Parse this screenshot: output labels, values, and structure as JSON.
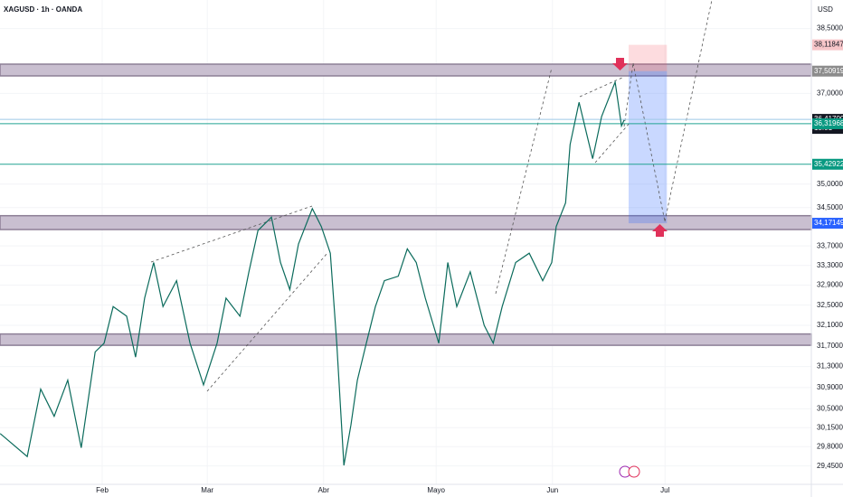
{
  "chart_data": {
    "type": "line",
    "title": "XAGUSD · 1h · OANDA",
    "currency": "USD",
    "log": true,
    "color": "#0b6b5c",
    "x": [
      3.8,
      11,
      14.6,
      18.2,
      21.8,
      25.4,
      29.1,
      31.5,
      33.9,
      37.5,
      39.9,
      42.3,
      44.7,
      47.2,
      50.8,
      54.4,
      58,
      61.6,
      64,
      67.7,
      70.1,
      72.5,
      76.1,
      78.5,
      81,
      83.3,
      87,
      89.4,
      91.8,
      93.5,
      95.4,
      97.3,
      99,
      101.4,
      103.8,
      106.2,
      109.9,
      112.3,
      114.7,
      117.1,
      120.7,
      123.1,
      125.5,
      129.1,
      132.8,
      135.2,
      137.6,
      141.2,
      144.8,
      148.4,
      150.8,
      152,
      154.5,
      155.7,
      158.1,
      161.7,
      164.1,
      167.7,
      169.4,
      170.1
    ],
    "values": [
      30.04,
      29.62,
      30.87,
      30.36,
      31.04,
      29.78,
      31.58,
      31.75,
      32.47,
      32.28,
      31.48,
      32.64,
      33.36,
      32.47,
      32.99,
      31.75,
      30.95,
      31.75,
      32.64,
      32.28,
      33.17,
      34.02,
      34.3,
      33.36,
      32.81,
      33.74,
      34.48,
      34.1,
      33.55,
      31.75,
      29.46,
      30.2,
      31.04,
      31.75,
      32.47,
      32.99,
      33.08,
      33.64,
      33.36,
      32.64,
      31.75,
      33.36,
      32.47,
      33.17,
      32.1,
      31.75,
      32.47,
      33.36,
      33.55,
      32.99,
      33.36,
      34.1,
      34.6,
      35.86,
      36.8,
      35.55,
      36.48,
      37.26,
      36.27,
      36.4
    ],
    "xlim": [
      3.75,
      220
    ],
    "xticks": [
      {
        "value": 31,
        "label": "Feb"
      },
      {
        "value": 59,
        "label": "Mar"
      },
      {
        "value": 90,
        "label": "Abr"
      },
      {
        "value": 120,
        "label": "Mayo"
      },
      {
        "value": 151,
        "label": "Jun"
      },
      {
        "value": 181,
        "label": "Jul"
      }
    ],
    "ylim": [
      29.12,
      39.18
    ],
    "yticks": [
      {
        "value": 38.5,
        "label": "38,50000"
      },
      {
        "value": 37,
        "label": "37,00000"
      },
      {
        "value": 35,
        "label": "35,00000"
      },
      {
        "value": 34.5,
        "label": "34,50000"
      },
      {
        "value": 33.7,
        "label": "33,70000"
      },
      {
        "value": 33.3,
        "label": "33,30000"
      },
      {
        "value": 32.9,
        "label": "32,90000"
      },
      {
        "value": 32.5,
        "label": "32,50000"
      },
      {
        "value": 32.1,
        "label": "32,10000"
      },
      {
        "value": 31.7,
        "label": "31,70000"
      },
      {
        "value": 31.3,
        "label": "31,30000"
      },
      {
        "value": 30.9,
        "label": "30,90000"
      },
      {
        "value": 30.5,
        "label": "30,50000"
      },
      {
        "value": 30.15,
        "label": "30,15000"
      },
      {
        "value": 29.8,
        "label": "29,80000"
      },
      {
        "value": 29.45,
        "label": "29,45000"
      }
    ],
    "zones": [
      {
        "from": 37.4,
        "to": 37.67
      },
      {
        "from": 34.04,
        "to": 34.33
      },
      {
        "from": 31.71,
        "to": 31.93
      }
    ],
    "position": {
      "from_x": 171.3,
      "to_x": 181.5,
      "stop": 38.11847,
      "entry": 37.50919,
      "target": 34.17149
    },
    "price_labels": [
      {
        "value": 38.11847,
        "label": "38,11847",
        "color": "#f7c6c9",
        "text_color": "#131722"
      },
      {
        "value": 37.50919,
        "label": "37,50919",
        "color": "#8c8c8c",
        "text_color": "#ffffff"
      },
      {
        "value": 36.417,
        "label": "36,41700",
        "time": "15:01",
        "color": "#131722",
        "text_color": "#ffffff",
        "line_color": "#9ec9e8"
      },
      {
        "value": 36.31968,
        "label": "36,31968",
        "color": "#089981",
        "text_color": "#ffffff",
        "line_color": "#22a392"
      },
      {
        "value": 35.42922,
        "label": "35,42922",
        "color": "#089981",
        "text_color": "#ffffff",
        "line_color": "#22a392"
      },
      {
        "value": 34.17149,
        "label": "34,17149",
        "color": "#2962ff",
        "text_color": "#ffffff"
      }
    ]
  }
}
